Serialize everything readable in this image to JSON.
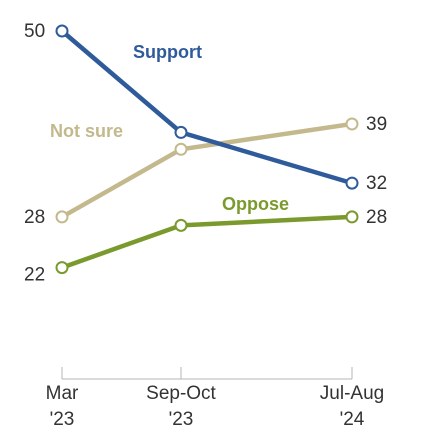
{
  "chart_data": {
    "type": "line",
    "x": [
      "Mar '23",
      "Sep-Oct '23",
      "Jul-Aug '24"
    ],
    "x_tick_lines": [
      [
        "Mar",
        "'23"
      ],
      [
        "Sep-Oct",
        "'23"
      ],
      [
        "Jul-Aug",
        "'24"
      ]
    ],
    "series": [
      {
        "name": "Support",
        "values": [
          50,
          38,
          32
        ],
        "color": "#2f5b9b",
        "labels": [
          "50",
          "",
          "32"
        ]
      },
      {
        "name": "Not sure",
        "values": [
          28,
          36,
          39
        ],
        "color": "#c3b98d",
        "labels": [
          "28",
          "",
          "39"
        ]
      },
      {
        "name": "Oppose",
        "values": [
          22,
          27,
          28
        ],
        "color": "#7a9a2e",
        "labels": [
          "22",
          "",
          "28"
        ]
      }
    ],
    "ylim": [
      15,
      55
    ],
    "grid": false,
    "legend": "direct labels on lines"
  }
}
